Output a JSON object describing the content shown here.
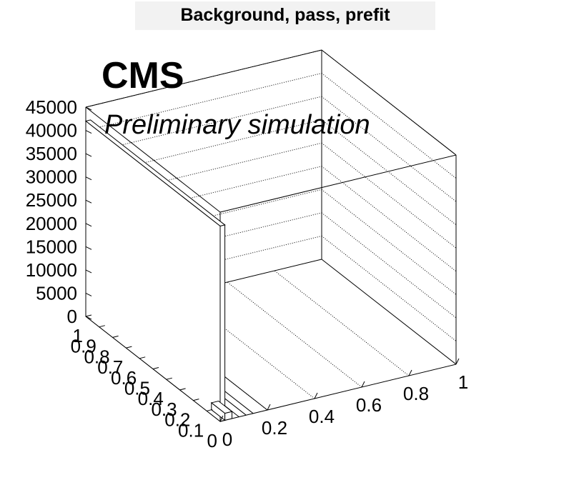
{
  "title": "Background, pass, prefit",
  "annotations": {
    "experiment": "CMS",
    "status": "Preliminary simulation"
  },
  "chart_data": {
    "type": "lego",
    "title": "Background, pass, prefit",
    "zlim": [
      0,
      45000
    ],
    "z_ticks": [
      0,
      5000,
      10000,
      15000,
      20000,
      25000,
      30000,
      35000,
      40000,
      45000
    ],
    "x_ticks": [
      0,
      0.2,
      0.4,
      0.6,
      0.8,
      1
    ],
    "y_ticks": [
      0,
      0.1,
      0.2,
      0.3,
      0.4,
      0.5,
      0.6,
      0.7,
      0.8,
      0.9,
      1
    ],
    "x_tick_labels": [
      "0",
      "0.2",
      "0.4",
      "0.6",
      "0.8",
      "1"
    ],
    "y_tick_labels": [
      "0",
      "0.1",
      "0.2",
      "0.3",
      "0.4",
      "0.5",
      "0.6",
      "0.7",
      "0.8",
      "0.9",
      "1"
    ],
    "z_tick_labels": [
      "0",
      "5000",
      "10000",
      "15000",
      "20000",
      "25000",
      "30000",
      "35000",
      "40000",
      "45000"
    ],
    "bars": [
      {
        "x": [
          0,
          0.02
        ],
        "y": [
          0,
          1
        ],
        "z": 42000
      },
      {
        "x": [
          0.02,
          0.05
        ],
        "y": [
          0,
          0.1
        ],
        "z": 1500
      }
    ],
    "grid": true,
    "xlabel": "",
    "ylabel": "",
    "zlabel": ""
  }
}
